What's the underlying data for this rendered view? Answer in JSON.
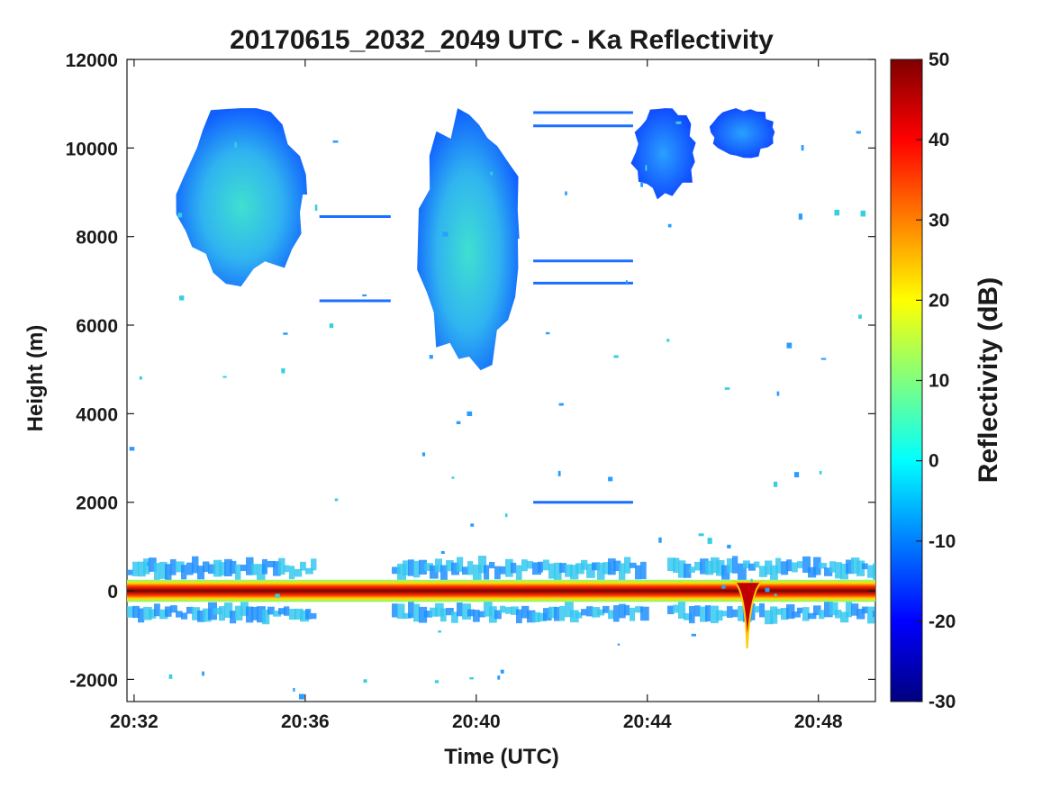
{
  "chart_data": {
    "type": "heatmap",
    "title": "20170615_2032_2049 UTC - Ka Reflectivity",
    "xlabel": "Time (UTC)",
    "ylabel": "Height (m)",
    "x_range": [
      "20:31:50",
      "20:49:20"
    ],
    "x_ticks": [
      "20:32",
      "20:36",
      "20:40",
      "20:44",
      "20:48"
    ],
    "ylim": [
      -2500,
      12000
    ],
    "y_ticks": [
      -2000,
      0,
      2000,
      4000,
      6000,
      8000,
      10000,
      12000
    ],
    "y_tick_labels": [
      "-2000",
      "0",
      "2000",
      "4000",
      "6000",
      "8000",
      "10000",
      "12000"
    ],
    "colorbar": {
      "label": "Reflectivity (dB)",
      "range": [
        -30,
        50
      ],
      "ticks": [
        -30,
        -20,
        -10,
        0,
        10,
        20,
        30,
        40,
        50
      ],
      "tick_labels": [
        "-30",
        "-20",
        "-10",
        "0",
        "10",
        "20",
        "30",
        "40",
        "50"
      ],
      "colormap": "jet"
    },
    "features": [
      {
        "name": "ground-return",
        "t_start": "20:31:50",
        "t_end": "20:49:20",
        "height_m": 0,
        "dbz": 48
      },
      {
        "name": "surface-clutter-above",
        "t_start": "20:31:50",
        "t_end": "20:49:20",
        "height_m": 500,
        "dbz": -3
      },
      {
        "name": "surface-clutter-below",
        "t_start": "20:31:50",
        "t_end": "20:49:20",
        "height_m": -500,
        "dbz": -3
      },
      {
        "name": "cloud-left",
        "t_start": "20:33:00",
        "t_end": "20:36:00",
        "h_low_m": 7000,
        "h_high_m": 10900,
        "dbz": -5
      },
      {
        "name": "cloud-center",
        "t_start": "20:38:40",
        "t_end": "20:41:00",
        "h_low_m": 5000,
        "h_high_m": 10900,
        "dbz": 2
      },
      {
        "name": "cloud-right",
        "t_start": "20:43:40",
        "t_end": "20:45:10",
        "h_low_m": 8900,
        "h_high_m": 10900,
        "dbz": -10
      },
      {
        "name": "cloud-far-right",
        "t_start": "20:45:30",
        "t_end": "20:47:00",
        "h_low_m": 9800,
        "h_high_m": 10900,
        "dbz": -15
      },
      {
        "name": "ground-dip",
        "t": "20:46:20",
        "min_height_m": -1300,
        "dbz": 45
      }
    ]
  },
  "colors": {
    "axis": "#1a1a1a",
    "background": "#ffffff",
    "jet_stops": [
      "#00007f",
      "#0000ff",
      "#007fff",
      "#00ffff",
      "#7fff7f",
      "#ffff00",
      "#ff7f00",
      "#ff0000",
      "#7f0000"
    ]
  }
}
